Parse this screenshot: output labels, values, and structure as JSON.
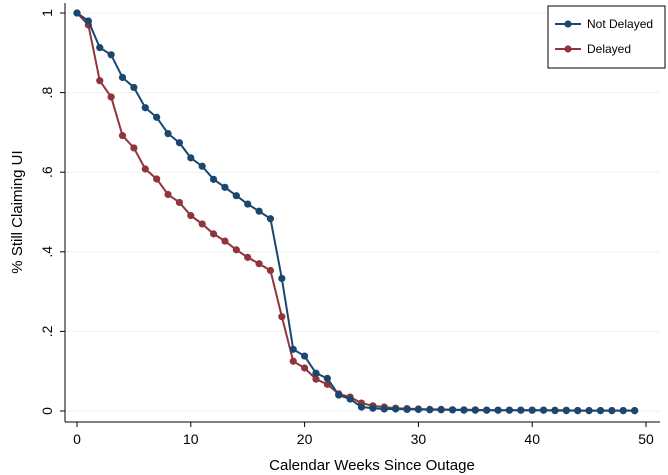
{
  "chart_data": {
    "type": "line",
    "title": "",
    "xlabel": "Calendar Weeks Since Outage",
    "ylabel": "% Still Claiming UI",
    "xlim": [
      0,
      50
    ],
    "ylim": [
      0,
      1
    ],
    "xticks": [
      0,
      10,
      20,
      30,
      40,
      50
    ],
    "yticks": [
      0,
      0.2,
      0.4,
      0.6,
      0.8,
      1
    ],
    "xtick_labels": [
      "0",
      "10",
      "20",
      "30",
      "40",
      "50"
    ],
    "ytick_labels": [
      "0",
      ".2",
      ".4",
      ".6",
      ".8",
      "1"
    ],
    "grid": "horizontal",
    "legend_position": "top-right",
    "x": [
      0,
      1,
      2,
      3,
      4,
      5,
      6,
      7,
      8,
      9,
      10,
      11,
      12,
      13,
      14,
      15,
      16,
      17,
      18,
      19,
      20,
      21,
      22,
      23,
      24,
      25,
      26,
      27,
      28,
      29,
      30,
      31,
      32,
      33,
      34,
      35,
      36,
      37,
      38,
      39,
      40,
      41,
      42,
      43,
      44,
      45,
      46,
      47,
      48,
      49
    ],
    "series": [
      {
        "name": "Not Delayed",
        "color": "#1a476f",
        "values": [
          1.0,
          0.98,
          0.913,
          0.895,
          0.838,
          0.813,
          0.762,
          0.738,
          0.697,
          0.674,
          0.636,
          0.615,
          0.582,
          0.562,
          0.541,
          0.52,
          0.502,
          0.483,
          0.333,
          0.155,
          0.138,
          0.095,
          0.082,
          0.04,
          0.03,
          0.01,
          0.007,
          0.005,
          0.005,
          0.004,
          0.004,
          0.003,
          0.003,
          0.003,
          0.002,
          0.002,
          0.002,
          0.002,
          0.002,
          0.002,
          0.002,
          0.002,
          0.001,
          0.001,
          0.001,
          0.001,
          0.001,
          0.001,
          0.001,
          0.001
        ]
      },
      {
        "name": "Delayed",
        "color": "#90353b",
        "values": [
          1.0,
          0.97,
          0.83,
          0.789,
          0.692,
          0.661,
          0.608,
          0.583,
          0.544,
          0.524,
          0.491,
          0.47,
          0.445,
          0.427,
          0.405,
          0.386,
          0.37,
          0.353,
          0.237,
          0.125,
          0.108,
          0.08,
          0.067,
          0.043,
          0.035,
          0.02,
          0.013,
          0.01,
          0.007,
          0.006,
          0.005,
          0.004,
          0.004,
          0.003,
          0.003,
          0.003,
          0.002,
          0.002,
          0.002,
          0.002,
          0.002,
          0.002,
          0.002,
          0.002,
          0.001,
          0.001,
          0.001,
          0.001,
          0.001,
          0.001
        ]
      }
    ]
  }
}
